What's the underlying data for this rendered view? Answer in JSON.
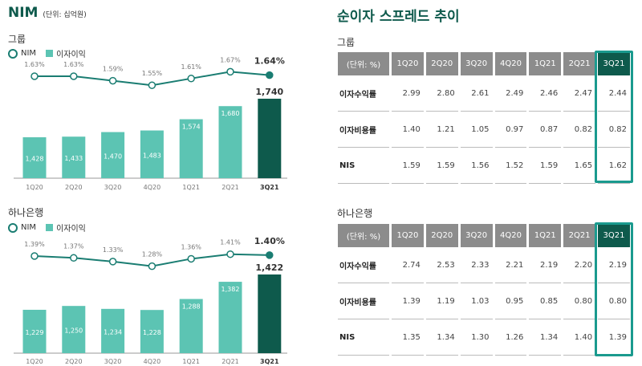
{
  "left": {
    "title": "NIM",
    "unit": "(단위: 십억원)",
    "legend_nim": "NIM",
    "legend_bar": "이자이익"
  },
  "right": {
    "title": "순이자 스프레드 추이"
  },
  "chart_data": [
    {
      "type": "bar+line",
      "title": "그룹",
      "categories": [
        "1Q20",
        "2Q20",
        "3Q20",
        "4Q20",
        "1Q21",
        "2Q21",
        "3Q21"
      ],
      "series": [
        {
          "name": "이자이익",
          "type": "bar",
          "values": [
            1428,
            1433,
            1470,
            1483,
            1574,
            1680,
            1740
          ],
          "labels": [
            "1,428",
            "1,433",
            "1,470",
            "1,483",
            "1,574",
            "1,680",
            "1,740"
          ]
        },
        {
          "name": "NIM",
          "type": "line",
          "values": [
            1.63,
            1.63,
            1.59,
            1.55,
            1.61,
            1.67,
            1.64
          ],
          "labels": [
            "1.63%",
            "1.63%",
            "1.59%",
            "1.55%",
            "1.61%",
            "1.67%",
            "1.64%"
          ]
        }
      ],
      "colors": {
        "bar": "#5cc4b3",
        "highlight": "#0e5a4c",
        "line": "#1a7d72"
      }
    },
    {
      "type": "bar+line",
      "title": "하나은행",
      "categories": [
        "1Q20",
        "2Q20",
        "3Q20",
        "4Q20",
        "1Q21",
        "2Q21",
        "3Q21"
      ],
      "series": [
        {
          "name": "이자이익",
          "type": "bar",
          "values": [
            1229,
            1250,
            1234,
            1228,
            1288,
            1382,
            1422
          ],
          "labels": [
            "1,229",
            "1,250",
            "1,234",
            "1,228",
            "1,288",
            "1,382",
            "1,422"
          ]
        },
        {
          "name": "NIM",
          "type": "line",
          "values": [
            1.39,
            1.37,
            1.33,
            1.28,
            1.36,
            1.41,
            1.4
          ],
          "labels": [
            "1.39%",
            "1.37%",
            "1.33%",
            "1.28%",
            "1.36%",
            "1.41%",
            "1.40%"
          ]
        }
      ],
      "colors": {
        "bar": "#5cc4b3",
        "highlight": "#0e5a4c",
        "line": "#1a7d72"
      }
    }
  ],
  "tables": [
    {
      "title": "그룹",
      "headers": [
        "(단위: %)",
        "1Q20",
        "2Q20",
        "3Q20",
        "4Q20",
        "1Q21",
        "2Q21",
        "3Q21"
      ],
      "rows": [
        [
          "이자수익률",
          "2.99",
          "2.80",
          "2.61",
          "2.49",
          "2.46",
          "2.47",
          "2.44"
        ],
        [
          "이자비용률",
          "1.40",
          "1.21",
          "1.05",
          "0.97",
          "0.87",
          "0.82",
          "0.82"
        ],
        [
          "NIS",
          "1.59",
          "1.59",
          "1.56",
          "1.52",
          "1.59",
          "1.65",
          "1.62"
        ]
      ]
    },
    {
      "title": "하나은행",
      "headers": [
        "(단위: %)",
        "1Q20",
        "2Q20",
        "3Q20",
        "4Q20",
        "1Q21",
        "2Q21",
        "3Q21"
      ],
      "rows": [
        [
          "이자수익률",
          "2.74",
          "2.53",
          "2.33",
          "2.21",
          "2.19",
          "2.20",
          "2.19"
        ],
        [
          "이자비용률",
          "1.39",
          "1.19",
          "1.03",
          "0.95",
          "0.85",
          "0.80",
          "0.80"
        ],
        [
          "NIS",
          "1.35",
          "1.34",
          "1.30",
          "1.26",
          "1.34",
          "1.40",
          "1.39"
        ]
      ]
    }
  ]
}
